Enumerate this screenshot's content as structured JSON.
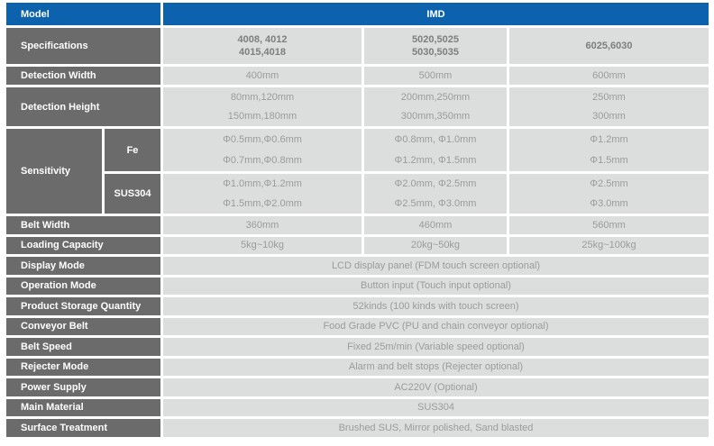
{
  "colors": {
    "header_blue": "#0d62ad",
    "label_gray": "#6b6b6b",
    "cell_gray": "#dcdddd",
    "data_text": "#9b9b9b",
    "label_text": "#ffffff"
  },
  "header": {
    "model": "Model",
    "series": "IMD"
  },
  "rows": {
    "specifications": {
      "label": "Specifications",
      "c1": [
        "4008, 4012",
        "4015,4018"
      ],
      "c2": [
        "5020,5025",
        "5030,5035"
      ],
      "c3": [
        "6025,6030"
      ]
    },
    "detection_width": {
      "label": "Detection Width",
      "c1": "400mm",
      "c2": "500mm",
      "c3": "600mm"
    },
    "detection_height": {
      "label": "Detection Height",
      "c1": [
        "80mm,120mm",
        "150mm,180mm"
      ],
      "c2": [
        "200mm,250mm",
        "300mm,350mm"
      ],
      "c3": [
        "250mm",
        "300mm"
      ]
    },
    "sensitivity": {
      "label": "Sensitivity",
      "fe": {
        "label": "Fe",
        "c1": [
          "Φ0.5mm,Φ0.6mm",
          "Φ0.7mm,Φ0.8mm"
        ],
        "c2": [
          "Φ0.8mm, Φ1.0mm",
          "Φ1.2mm, Φ1.5mm"
        ],
        "c3": [
          "Φ1.2mm",
          "Φ1.5mm"
        ]
      },
      "sus304": {
        "label": "SUS304",
        "c1": [
          "Φ1.0mm,Φ1.2mm",
          "Φ1.5mm,Φ2.0mm"
        ],
        "c2": [
          "Φ2.0mm, Φ2.5mm",
          "Φ2.5mm, Φ3.0mm"
        ],
        "c3": [
          "Φ2.5mm",
          "Φ3.0mm"
        ]
      }
    },
    "belt_width": {
      "label": "Belt Width",
      "c1": "360mm",
      "c2": "460mm",
      "c3": "560mm"
    },
    "loading_capacity": {
      "label": "Loading Capacity",
      "c1": "5kg~10kg",
      "c2": "20kg~50kg",
      "c3": "25kg~100kg"
    }
  },
  "full": [
    {
      "label": "Display Mode",
      "value": "LCD display panel (FDM touch screen optional)"
    },
    {
      "label": "Operation Mode",
      "value": "Button input (Touch input optional)"
    },
    {
      "label": "Product Storage Quantity",
      "value": "52kinds (100 kinds with touch screen)"
    },
    {
      "label": "Conveyor Belt",
      "value": "Food Grade PVC (PU and chain conveyor optional)"
    },
    {
      "label": "Belt Speed",
      "value": "Fixed 25m/min (Variable speed optional)"
    },
    {
      "label": "Rejecter Mode",
      "value": "Alarm and belt stops (Rejecter optional)"
    },
    {
      "label": "Power Supply",
      "value": "AC220V (Optional)"
    },
    {
      "label": "Main Material",
      "value": "SUS304"
    },
    {
      "label": "Surface Treatment",
      "value": "Brushed SUS, Mirror polished, Sand blasted"
    }
  ]
}
